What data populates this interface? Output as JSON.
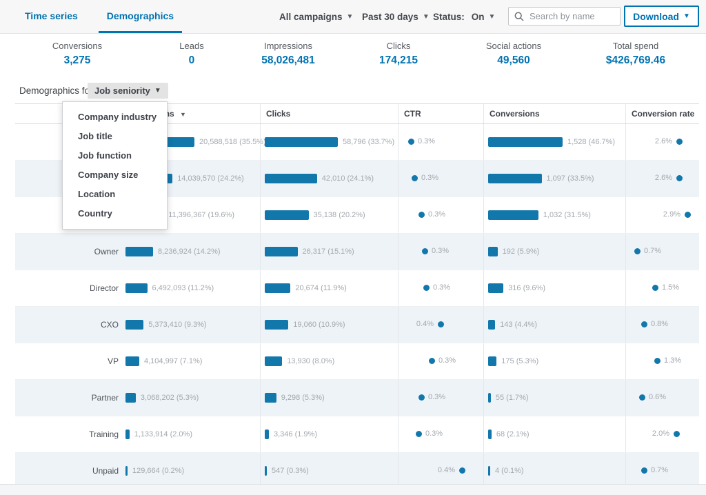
{
  "topbar": {
    "tabs": [
      {
        "label": "Time series",
        "active": false
      },
      {
        "label": "Demographics",
        "active": true
      }
    ],
    "filters": {
      "campaigns": "All campaigns",
      "date_range": "Past 30 days",
      "status_label": "Status:",
      "status_value": "On"
    },
    "search": {
      "placeholder": "Search by name"
    },
    "download_label": "Download"
  },
  "stats": [
    {
      "label": "Conversions",
      "value": "3,275"
    },
    {
      "label": "Leads",
      "value": "0"
    },
    {
      "label": "Impressions",
      "value": "58,026,481"
    },
    {
      "label": "Clicks",
      "value": "174,215"
    },
    {
      "label": "Social actions",
      "value": "49,560"
    },
    {
      "label": "Total spend",
      "value": "$426,769.46"
    }
  ],
  "demographics_bar": {
    "label": "Demographics for",
    "selected": "Job seniority"
  },
  "menu": {
    "items": [
      "Company industry",
      "Job title",
      "Job function",
      "Company size",
      "Location",
      "Country"
    ]
  },
  "table": {
    "header": {
      "demographic": "",
      "impressions": "Impressions",
      "clicks": "Clicks",
      "ctr": "CTR",
      "conversions": "Conversions",
      "conversion_rate": "Conversion rate"
    },
    "rows": [
      {
        "label": "",
        "impressions": {
          "value": "20,588,518",
          "pct": "35.5"
        },
        "clicks": {
          "value": "58,796",
          "pct": "33.7"
        },
        "ctr": {
          "label": "0.3%",
          "frac": 0.05,
          "side": "right"
        },
        "conversions": {
          "value": "1,528",
          "pct": "46.7"
        },
        "conversion_rate": {
          "label": "2.6%",
          "frac": 0.74,
          "side": "left"
        }
      },
      {
        "label": "",
        "impressions": {
          "value": "14,039,570",
          "pct": "24.2"
        },
        "clicks": {
          "value": "42,010",
          "pct": "24.1"
        },
        "ctr": {
          "label": "0.3%",
          "frac": 0.1,
          "side": "right"
        },
        "conversions": {
          "value": "1,097",
          "pct": "33.5"
        },
        "conversion_rate": {
          "label": "2.6%",
          "frac": 0.74,
          "side": "left"
        }
      },
      {
        "label": "",
        "impressions": {
          "value": "11,396,367",
          "pct": "19.6"
        },
        "clicks": {
          "value": "35,138",
          "pct": "20.2"
        },
        "ctr": {
          "label": "0.3%",
          "frac": 0.22,
          "side": "right"
        },
        "conversions": {
          "value": "1,032",
          "pct": "31.5"
        },
        "conversion_rate": {
          "label": "2.9%",
          "frac": 0.87,
          "side": "left"
        }
      },
      {
        "label": "Owner",
        "impressions": {
          "value": "8,236,924",
          "pct": "14.2"
        },
        "clicks": {
          "value": "26,317",
          "pct": "15.1"
        },
        "ctr": {
          "label": "0.3%",
          "frac": 0.28,
          "side": "right"
        },
        "conversions": {
          "value": "192",
          "pct": "5.9"
        },
        "conversion_rate": {
          "label": "0.7%",
          "frac": 0.04,
          "side": "right"
        }
      },
      {
        "label": "Director",
        "impressions": {
          "value": "6,492,093",
          "pct": "11.2"
        },
        "clicks": {
          "value": "20,674",
          "pct": "11.9"
        },
        "ctr": {
          "label": "0.3%",
          "frac": 0.3,
          "side": "right"
        },
        "conversions": {
          "value": "316",
          "pct": "9.6"
        },
        "conversion_rate": {
          "label": "1.5%",
          "frac": 0.34,
          "side": "right"
        }
      },
      {
        "label": "CXO",
        "impressions": {
          "value": "5,373,410",
          "pct": "9.3"
        },
        "clicks": {
          "value": "19,060",
          "pct": "10.9"
        },
        "ctr": {
          "label": "0.4%",
          "frac": 0.55,
          "side": "left"
        },
        "conversions": {
          "value": "143",
          "pct": "4.4"
        },
        "conversion_rate": {
          "label": "0.8%",
          "frac": 0.16,
          "side": "right"
        }
      },
      {
        "label": "VP",
        "impressions": {
          "value": "4,104,997",
          "pct": "7.1"
        },
        "clicks": {
          "value": "13,930",
          "pct": "8.0"
        },
        "ctr": {
          "label": "0.3%",
          "frac": 0.4,
          "side": "right"
        },
        "conversions": {
          "value": "175",
          "pct": "5.3"
        },
        "conversion_rate": {
          "label": "1.3%",
          "frac": 0.37,
          "side": "right"
        }
      },
      {
        "label": "Partner",
        "impressions": {
          "value": "3,068,202",
          "pct": "5.3"
        },
        "clicks": {
          "value": "9,298",
          "pct": "5.3"
        },
        "ctr": {
          "label": "0.3%",
          "frac": 0.22,
          "side": "right"
        },
        "conversions": {
          "value": "55",
          "pct": "1.7"
        },
        "conversion_rate": {
          "label": "0.6%",
          "frac": 0.12,
          "side": "right"
        }
      },
      {
        "label": "Training",
        "impressions": {
          "value": "1,133,914",
          "pct": "2.0"
        },
        "clicks": {
          "value": "3,346",
          "pct": "1.9"
        },
        "ctr": {
          "label": "0.3%",
          "frac": 0.18,
          "side": "right"
        },
        "conversions": {
          "value": "68",
          "pct": "2.1"
        },
        "conversion_rate": {
          "label": "2.0%",
          "frac": 0.69,
          "side": "left"
        }
      },
      {
        "label": "Unpaid",
        "impressions": {
          "value": "129,664",
          "pct": "0.2"
        },
        "clicks": {
          "value": "547",
          "pct": "0.3"
        },
        "ctr": {
          "label": "0.4%",
          "frac": 0.92,
          "side": "left"
        },
        "conversions": {
          "value": "4",
          "pct": "0.1"
        },
        "conversion_rate": {
          "label": "0.7%",
          "frac": 0.16,
          "side": "right"
        }
      }
    ]
  },
  "chart_data": {
    "type": "bar",
    "title": "Demographics for Job seniority",
    "categories": [
      "",
      "",
      "",
      "Owner",
      "Director",
      "CXO",
      "VP",
      "Partner",
      "Training",
      "Unpaid"
    ],
    "series": [
      {
        "name": "Impressions",
        "values": [
          20588518,
          14039570,
          11396367,
          8236924,
          6492093,
          5373410,
          4104997,
          3068202,
          1133914,
          129664
        ],
        "pct": [
          35.5,
          24.2,
          19.6,
          14.2,
          11.2,
          9.3,
          7.1,
          5.3,
          2.0,
          0.2
        ]
      },
      {
        "name": "Clicks",
        "values": [
          58796,
          42010,
          35138,
          26317,
          20674,
          19060,
          13930,
          9298,
          3346,
          547
        ],
        "pct": [
          33.7,
          24.1,
          20.2,
          15.1,
          11.9,
          10.9,
          8.0,
          5.3,
          1.9,
          0.3
        ]
      },
      {
        "name": "CTR %",
        "values": [
          0.3,
          0.3,
          0.3,
          0.3,
          0.3,
          0.4,
          0.3,
          0.3,
          0.3,
          0.4
        ]
      },
      {
        "name": "Conversions",
        "values": [
          1528,
          1097,
          1032,
          192,
          316,
          143,
          175,
          55,
          68,
          4
        ],
        "pct": [
          46.7,
          33.5,
          31.5,
          5.9,
          9.6,
          4.4,
          5.3,
          1.7,
          2.1,
          0.1
        ]
      },
      {
        "name": "Conversion rate %",
        "values": [
          2.6,
          2.6,
          2.9,
          0.7,
          1.5,
          0.8,
          1.3,
          0.6,
          2.0,
          0.7
        ]
      }
    ],
    "legend_position": "none",
    "grid": false
  },
  "colors": {
    "accent_blue": "#0073b1",
    "bar_blue": "#1277ab",
    "alt_row": "#eef3f8",
    "muted_text": "#a3a8ae"
  }
}
